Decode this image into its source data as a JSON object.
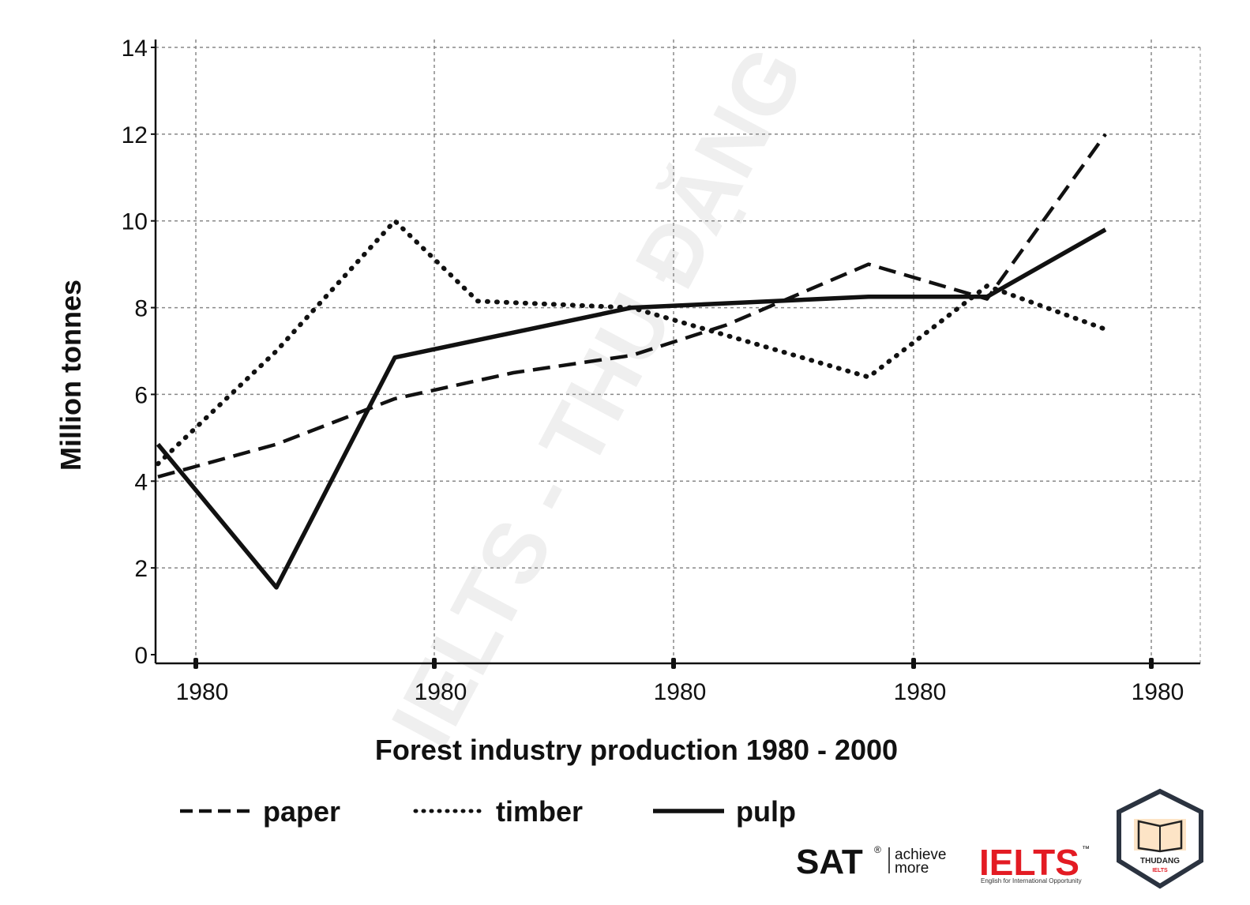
{
  "chart_data": {
    "type": "line",
    "title": "Forest industry production 1980 - 2000",
    "ylabel": "Million tonnes",
    "xlabel": "",
    "ylim": [
      0,
      14
    ],
    "yticks": [
      "0",
      "2",
      "4",
      "6",
      "8",
      "10",
      "12",
      "14"
    ],
    "xticks": [
      "1980",
      "1980",
      "1980",
      "1980",
      "1980"
    ],
    "grid": true,
    "legend_position": "bottom",
    "series": [
      {
        "name": "paper",
        "style": "dashed",
        "points": [
          [
            0.0,
            4.1
          ],
          [
            0.5,
            4.85
          ],
          [
            1.0,
            5.9
          ],
          [
            1.5,
            6.5
          ],
          [
            2.0,
            6.9
          ],
          [
            2.4,
            7.6
          ],
          [
            3.0,
            9.0
          ],
          [
            3.5,
            8.2
          ],
          [
            4.0,
            12.0
          ]
        ]
      },
      {
        "name": "timber",
        "style": "dotted",
        "points": [
          [
            0.0,
            4.4
          ],
          [
            0.5,
            7.0
          ],
          [
            1.0,
            10.0
          ],
          [
            1.35,
            8.15
          ],
          [
            2.0,
            8.0
          ],
          [
            2.5,
            7.2
          ],
          [
            3.0,
            6.4
          ],
          [
            3.5,
            8.5
          ],
          [
            4.0,
            7.5
          ]
        ]
      },
      {
        "name": "pulp",
        "style": "solid",
        "points": [
          [
            0.0,
            4.85
          ],
          [
            0.5,
            1.55
          ],
          [
            1.0,
            6.85
          ],
          [
            2.0,
            8.0
          ],
          [
            3.0,
            8.25
          ],
          [
            3.5,
            8.25
          ],
          [
            4.0,
            9.8
          ]
        ]
      }
    ]
  },
  "watermark": "IELTS - THU ĐẶNG",
  "logos": {
    "sat": "SAT",
    "sat_reg": "®",
    "sat_tagline_1": "achieve",
    "sat_tagline_2": "more",
    "ielts": "IELTS",
    "ielts_tm": "™",
    "ielts_tagline": "English for International Opportunity",
    "badge": "THUDANG",
    "badge_sub": "IELTS"
  },
  "colors": {
    "line": "#111111",
    "grid": "#888888",
    "ielts_red": "#e31b23",
    "badge_border": "#2b3340"
  }
}
